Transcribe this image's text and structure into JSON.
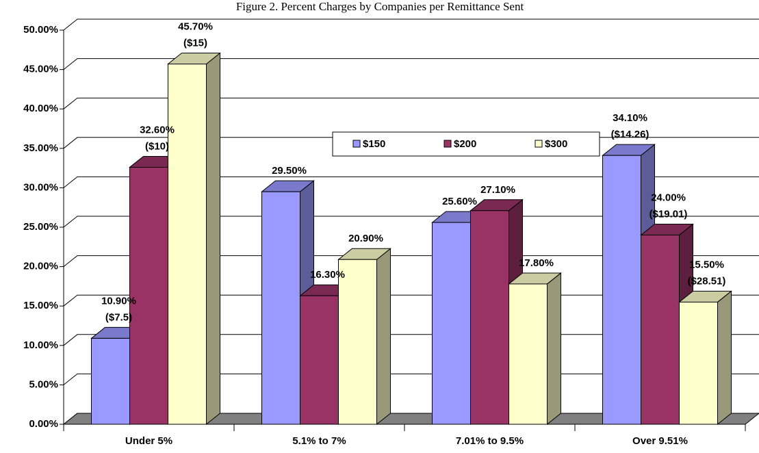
{
  "chart_data": {
    "type": "bar3d",
    "title": "Figure 2. Percent Charges by Companies per Remittance Sent",
    "categories": [
      "Under 5%",
      "5.1% to 7%",
      "7.01% to 9.5%",
      "Over 9.51%"
    ],
    "series": [
      {
        "name": "$150",
        "color": "#9999ff",
        "values": [
          10.9,
          29.5,
          25.6,
          34.1
        ],
        "value_labels": [
          "10.90%",
          "29.50%",
          "25.60%",
          "34.10%"
        ],
        "amounts": [
          "($7.5)",
          null,
          null,
          "($14.26)"
        ]
      },
      {
        "name": "$200",
        "color": "#993366",
        "values": [
          32.6,
          16.3,
          27.1,
          24.0
        ],
        "value_labels": [
          "32.60%",
          "16.30%",
          "27.10%",
          "24.00%"
        ],
        "amounts": [
          "($10)",
          null,
          null,
          "($19.01)"
        ]
      },
      {
        "name": "$300",
        "color": "#ffffcc",
        "values": [
          45.7,
          20.9,
          17.8,
          15.5
        ],
        "value_labels": [
          "45.70%",
          "20.90%",
          "17.80%",
          "15.50%"
        ],
        "amounts": [
          "($15)",
          null,
          null,
          "($28.51)"
        ]
      }
    ],
    "ylim": [
      0,
      50
    ],
    "yticks": [
      {
        "value": 0,
        "label": "0.00%"
      },
      {
        "value": 5,
        "label": "5.00%"
      },
      {
        "value": 10,
        "label": "10.00%"
      },
      {
        "value": 15,
        "label": "15.00%"
      },
      {
        "value": 20,
        "label": "20.00%"
      },
      {
        "value": 25,
        "label": "25.00%"
      },
      {
        "value": 30,
        "label": "30.00%"
      },
      {
        "value": 35,
        "label": "35.00%"
      },
      {
        "value": 40,
        "label": "40.00%"
      },
      {
        "value": 45,
        "label": "45.00%"
      },
      {
        "value": 50,
        "label": "50.00%"
      }
    ],
    "grid": true
  }
}
